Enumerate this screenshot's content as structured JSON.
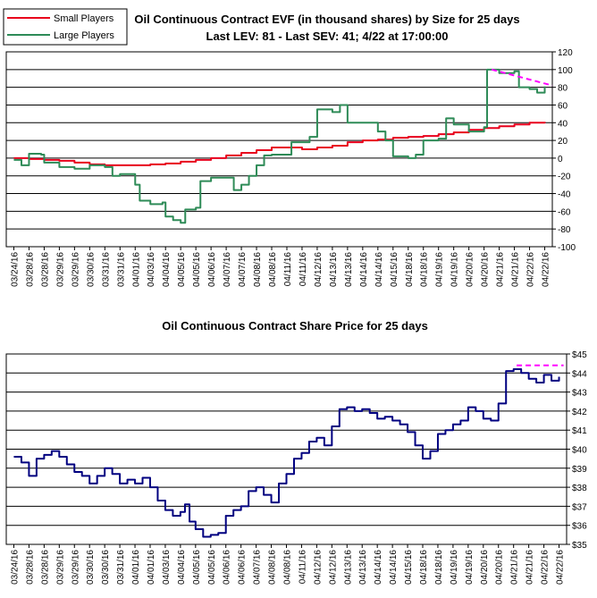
{
  "chart_data": [
    {
      "type": "line",
      "title": "Oil Continuous Contract EVF (in thousand shares) by Size for 25 days",
      "subtitle": "Last LEV: 81 - Last SEV: 41; 4/22 at 17:00:00",
      "xlabel": "",
      "ylabel": "",
      "ylim": [
        -100,
        120
      ],
      "yticks": [
        -100,
        -80,
        -60,
        -40,
        -20,
        0,
        20,
        40,
        60,
        80,
        100,
        120
      ],
      "y_axis_side": "right",
      "grid": "horizontal",
      "legend": "top-left",
      "categories": [
        "03/24/16",
        "03/28/16",
        "03/28/16",
        "03/29/16",
        "03/29/16",
        "03/30/16",
        "03/31/16",
        "03/31/16",
        "04/01/16",
        "04/03/16",
        "04/04/16",
        "04/05/16",
        "04/05/16",
        "04/06/16",
        "04/07/16",
        "04/07/16",
        "04/08/16",
        "04/08/16",
        "04/11/16",
        "04/11/16",
        "04/12/16",
        "04/13/16",
        "04/13/16",
        "04/14/16",
        "04/14/16",
        "04/15/16",
        "04/18/16",
        "04/18/16",
        "04/19/16",
        "04/19/16",
        "04/20/16",
        "04/20/16",
        "04/21/16",
        "04/21/16",
        "04/22/16",
        "04/22/16"
      ],
      "series": [
        {
          "name": "Small Players",
          "color": "#e8001c",
          "points": [
            [
              0,
              0
            ],
            [
              1,
              -1
            ],
            [
              2,
              -2
            ],
            [
              3,
              -3
            ],
            [
              4,
              -5
            ],
            [
              5,
              -7
            ],
            [
              6,
              -8
            ],
            [
              7,
              -8
            ],
            [
              8,
              -8
            ],
            [
              9,
              -7
            ],
            [
              10,
              -6
            ],
            [
              11,
              -4
            ],
            [
              12,
              -2
            ],
            [
              13,
              0
            ],
            [
              14,
              3
            ],
            [
              15,
              6
            ],
            [
              16,
              9
            ],
            [
              17,
              12
            ],
            [
              18,
              12
            ],
            [
              19,
              10
            ],
            [
              20,
              12
            ],
            [
              21,
              14
            ],
            [
              22,
              18
            ],
            [
              23,
              20
            ],
            [
              24,
              21
            ],
            [
              25,
              23
            ],
            [
              26,
              24
            ],
            [
              27,
              25
            ],
            [
              28,
              27
            ],
            [
              29,
              29
            ],
            [
              30,
              32
            ],
            [
              31,
              34
            ],
            [
              32,
              36
            ],
            [
              33,
              38
            ],
            [
              34,
              40
            ],
            [
              35,
              41
            ]
          ]
        },
        {
          "name": "Large Players",
          "color": "#2e8b57",
          "points": [
            [
              0,
              -2
            ],
            [
              0.5,
              -8
            ],
            [
              1,
              5
            ],
            [
              1.8,
              4
            ],
            [
              2,
              -5
            ],
            [
              3,
              -10
            ],
            [
              4,
              -12
            ],
            [
              5,
              -8
            ],
            [
              6,
              -10
            ],
            [
              6.5,
              -20
            ],
            [
              7,
              -18
            ],
            [
              8,
              -30
            ],
            [
              8.3,
              -48
            ],
            [
              9,
              -52
            ],
            [
              9.8,
              -50
            ],
            [
              10,
              -66
            ],
            [
              10.5,
              -70
            ],
            [
              11,
              -73
            ],
            [
              11.3,
              -58
            ],
            [
              12,
              -56
            ],
            [
              12.3,
              -26
            ],
            [
              13,
              -22
            ],
            [
              14,
              -22
            ],
            [
              14.5,
              -36
            ],
            [
              15,
              -30
            ],
            [
              15.5,
              -20
            ],
            [
              16,
              -8
            ],
            [
              16.5,
              3
            ],
            [
              17,
              4
            ],
            [
              18,
              4
            ],
            [
              18.3,
              18
            ],
            [
              19,
              18
            ],
            [
              19.5,
              24
            ],
            [
              20,
              55
            ],
            [
              21,
              52
            ],
            [
              21.5,
              60
            ],
            [
              22,
              40
            ],
            [
              23,
              40
            ],
            [
              24,
              30
            ],
            [
              24.5,
              20
            ],
            [
              25,
              2
            ],
            [
              26,
              0
            ],
            [
              26.5,
              4
            ],
            [
              27,
              20
            ],
            [
              28,
              22
            ],
            [
              28.5,
              45
            ],
            [
              29,
              38
            ],
            [
              30,
              30
            ],
            [
              31,
              35
            ],
            [
              31.2,
              100
            ],
            [
              32,
              96
            ],
            [
              33,
              98
            ],
            [
              33.3,
              80
            ],
            [
              34,
              78
            ],
            [
              34.5,
              74
            ],
            [
              35,
              81
            ]
          ]
        }
      ],
      "trendline": {
        "color": "#ff00ff",
        "style": "dashed",
        "from": [
          31.5,
          100
        ],
        "to": [
          35.5,
          82
        ]
      }
    },
    {
      "type": "line",
      "title": "Oil Continuous Contract Share Price for 25 days",
      "xlabel": "",
      "ylabel": "",
      "ylim": [
        35,
        45
      ],
      "yticks": [
        "$35",
        "$36",
        "$37",
        "$38",
        "$39",
        "$40",
        "$41",
        "$42",
        "$43",
        "$44",
        "$45"
      ],
      "y_axis_side": "right",
      "grid": "horizontal",
      "categories": [
        "03/24/16",
        "03/28/16",
        "03/28/16",
        "03/29/16",
        "03/29/16",
        "03/30/16",
        "03/30/16",
        "03/31/16",
        "04/01/16",
        "04/01/16",
        "04/03/16",
        "04/04/16",
        "04/05/16",
        "04/05/16",
        "04/06/16",
        "04/06/16",
        "04/07/16",
        "04/08/16",
        "04/08/16",
        "04/11/16",
        "04/12/16",
        "04/12/16",
        "04/13/16",
        "04/13/16",
        "04/14/16",
        "04/14/16",
        "04/15/16",
        "04/18/16",
        "04/18/16",
        "04/19/16",
        "04/19/16",
        "04/20/16",
        "04/20/16",
        "04/21/16",
        "04/21/16",
        "04/22/16",
        "04/22/16"
      ],
      "series": [
        {
          "name": "",
          "color": "#000080",
          "points": [
            [
              0,
              39.6
            ],
            [
              0.5,
              39.3
            ],
            [
              1,
              38.6
            ],
            [
              1.5,
              39.5
            ],
            [
              2,
              39.7
            ],
            [
              2.5,
              39.9
            ],
            [
              3,
              39.6
            ],
            [
              3.5,
              39.2
            ],
            [
              4,
              38.8
            ],
            [
              4.5,
              38.6
            ],
            [
              5,
              38.2
            ],
            [
              5.5,
              38.6
            ],
            [
              6,
              39.0
            ],
            [
              6.5,
              38.7
            ],
            [
              7,
              38.2
            ],
            [
              7.5,
              38.4
            ],
            [
              8,
              38.2
            ],
            [
              8.5,
              38.5
            ],
            [
              9,
              38.0
            ],
            [
              9.5,
              37.3
            ],
            [
              10,
              36.8
            ],
            [
              10.5,
              36.5
            ],
            [
              11,
              36.7
            ],
            [
              11.3,
              37.1
            ],
            [
              11.6,
              36.2
            ],
            [
              12,
              35.8
            ],
            [
              12.5,
              35.4
            ],
            [
              13,
              35.5
            ],
            [
              13.5,
              35.6
            ],
            [
              14,
              36.5
            ],
            [
              14.5,
              36.8
            ],
            [
              15,
              37.0
            ],
            [
              15.5,
              37.8
            ],
            [
              16,
              38.0
            ],
            [
              16.5,
              37.6
            ],
            [
              17,
              37.2
            ],
            [
              17.5,
              38.2
            ],
            [
              18,
              38.7
            ],
            [
              18.5,
              39.5
            ],
            [
              19,
              39.8
            ],
            [
              19.5,
              40.4
            ],
            [
              20,
              40.6
            ],
            [
              20.5,
              40.2
            ],
            [
              21,
              41.2
            ],
            [
              21.5,
              42.1
            ],
            [
              22,
              42.2
            ],
            [
              22.5,
              42.0
            ],
            [
              23,
              42.1
            ],
            [
              23.5,
              41.9
            ],
            [
              24,
              41.6
            ],
            [
              24.5,
              41.7
            ],
            [
              25,
              41.5
            ],
            [
              25.5,
              41.3
            ],
            [
              26,
              40.9
            ],
            [
              26.5,
              40.2
            ],
            [
              27,
              39.5
            ],
            [
              27.5,
              39.9
            ],
            [
              28,
              40.8
            ],
            [
              28.5,
              41.0
            ],
            [
              29,
              41.3
            ],
            [
              29.5,
              41.5
            ],
            [
              30,
              42.2
            ],
            [
              30.5,
              42.0
            ],
            [
              31,
              41.6
            ],
            [
              31.5,
              41.5
            ],
            [
              32,
              42.4
            ],
            [
              32.5,
              44.1
            ],
            [
              33,
              44.2
            ],
            [
              33.5,
              44.0
            ],
            [
              34,
              43.7
            ],
            [
              34.5,
              43.5
            ],
            [
              35,
              43.9
            ],
            [
              35.5,
              43.6
            ],
            [
              36,
              43.8
            ]
          ]
        }
      ],
      "trendline": {
        "color": "#ff00ff",
        "style": "dashed",
        "from": [
          33.2,
          44.4
        ],
        "to": [
          36.3,
          44.4
        ]
      }
    }
  ]
}
